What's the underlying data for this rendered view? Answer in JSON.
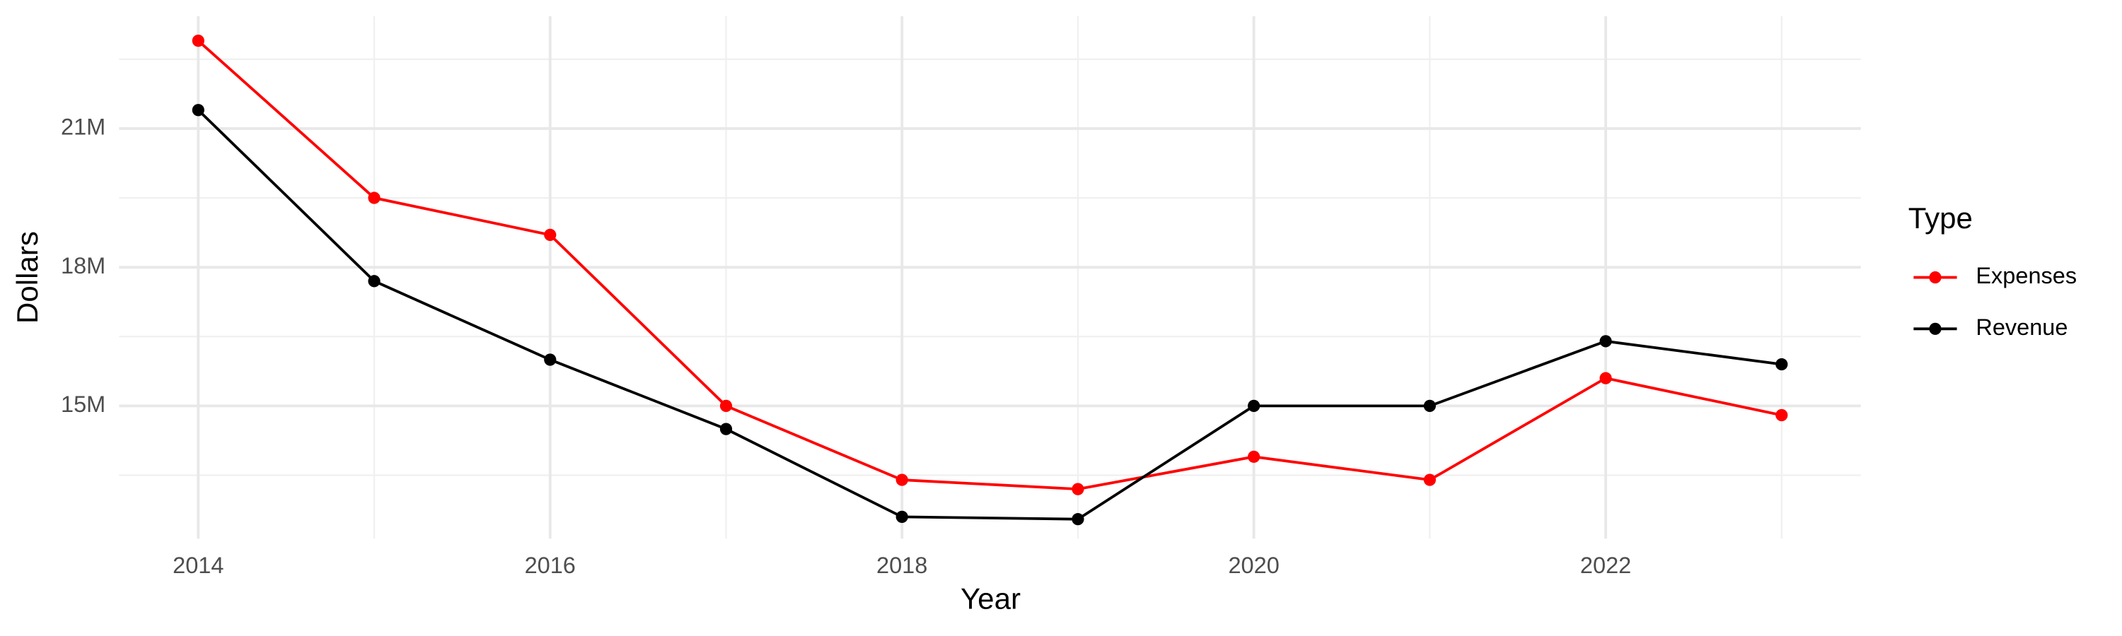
{
  "chart_data": {
    "type": "line",
    "x_label": "Year",
    "y_label": "Dollars",
    "legend_title": "Type",
    "legend": "right",
    "grid": true,
    "x": [
      2014,
      2015,
      2016,
      2017,
      2018,
      2019,
      2020,
      2021,
      2022,
      2023
    ],
    "series": [
      {
        "name": "Expenses",
        "color": "#ff0000",
        "values": [
          22900000,
          19500000,
          18700000,
          15000000,
          13400000,
          13200000,
          13900000,
          13400000,
          15600000,
          14800000
        ]
      },
      {
        "name": "Revenue",
        "color": "#000000",
        "values": [
          21400000,
          17700000,
          16000000,
          14500000,
          12600000,
          12550000,
          15000000,
          15000000,
          16400000,
          15900000
        ]
      }
    ],
    "xlim": [
      2013.55,
      2023.45
    ],
    "xticks": [
      2014,
      2016,
      2018,
      2020,
      2022
    ],
    "ylim": [
      12130000,
      23430000
    ],
    "yticks": [
      {
        "value": 15000000,
        "label": "15M"
      },
      {
        "value": 18000000,
        "label": "18M"
      },
      {
        "value": 21000000,
        "label": "21M"
      }
    ]
  }
}
